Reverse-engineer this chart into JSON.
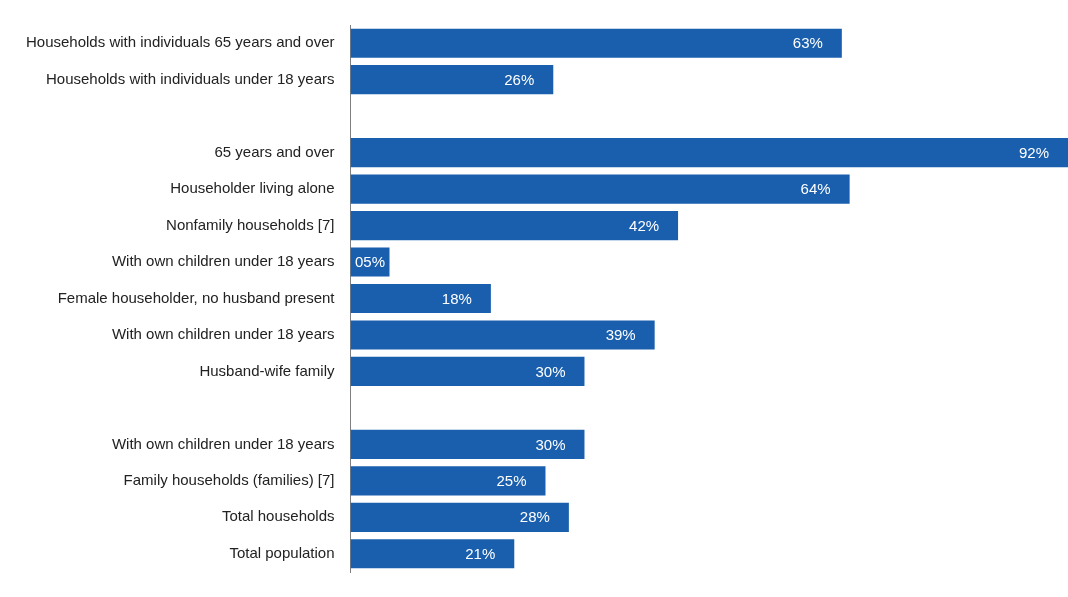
{
  "chart_data": {
    "type": "bar",
    "orientation": "horizontal",
    "categories": [
      "Households with individuals 65 years and over",
      "Households with individuals under 18 years",
      null,
      "65 years and over",
      "Householder living alone",
      "Nonfamily households [7]",
      "With own children under 18 years",
      "Female householder, no husband present",
      "With own children under 18 years",
      "Husband-wife family",
      null,
      "With own children under 18 years",
      "Family households (families) [7]",
      "Total households",
      "Total population"
    ],
    "values": [
      63,
      26,
      null,
      92,
      64,
      42,
      5,
      18,
      39,
      30,
      null,
      30,
      25,
      28,
      21
    ],
    "value_labels": [
      "63%",
      "26%",
      null,
      "92%",
      "64%",
      "42%",
      "05%",
      "18%",
      "39%",
      "30%",
      null,
      "30%",
      "25%",
      "28%",
      "21%"
    ],
    "color": "#1a5fad",
    "xlim": [
      0,
      92
    ],
    "tick_labels": "y",
    "legend": false
  }
}
